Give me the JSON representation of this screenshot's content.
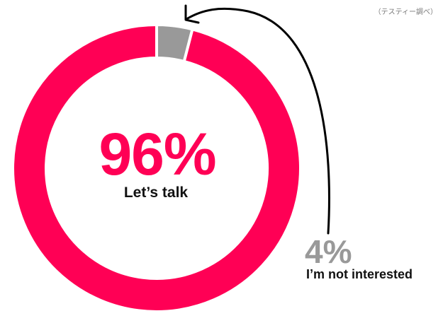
{
  "note": "（テスティー調べ）",
  "chart_data": {
    "type": "pie",
    "donut": true,
    "slices": [
      {
        "label": "Let’s talk",
        "value": 96,
        "display": "96%",
        "color": "#FF0055"
      },
      {
        "label": "I’m not interested",
        "value": 4,
        "display": "4%",
        "color": "#999999"
      }
    ],
    "start": "top",
    "direction": "clockwise-from-small-slice",
    "annotation": "arrow pointing from 4% label to gray slice"
  }
}
